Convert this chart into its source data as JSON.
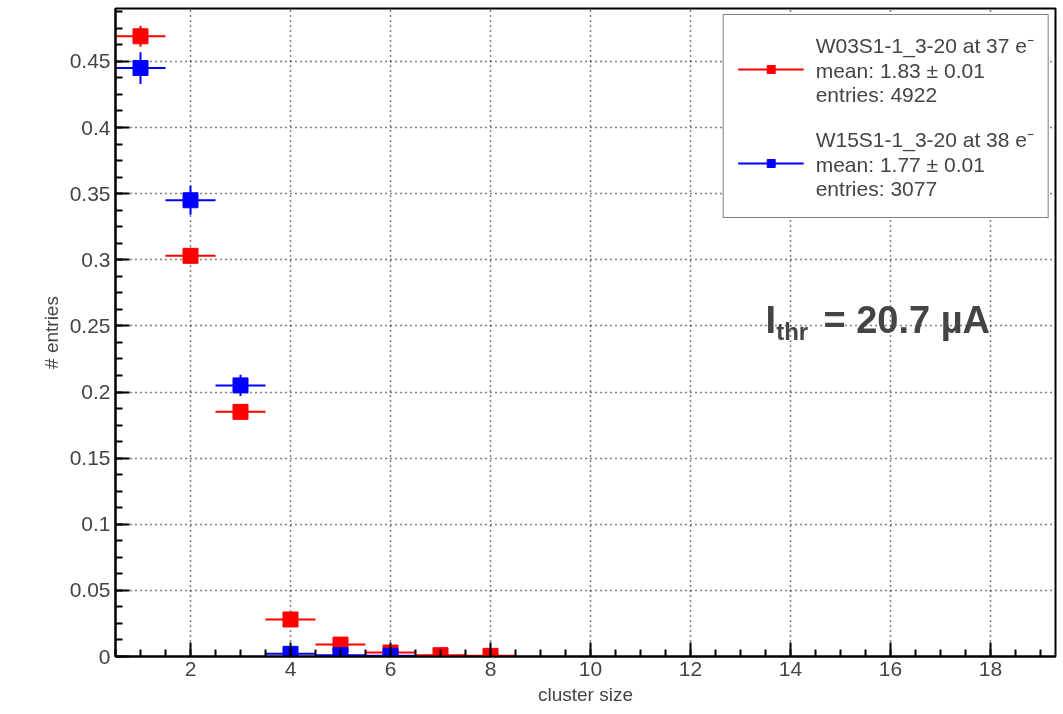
{
  "chart_data": {
    "type": "scatter",
    "xlabel": "cluster size",
    "ylabel": "# entries",
    "x": [
      1,
      2,
      3,
      4,
      5,
      6,
      7,
      8
    ],
    "xlim": [
      0.5,
      19.3
    ],
    "ylim": [
      0,
      0.49
    ],
    "xticks": [
      2,
      4,
      6,
      8,
      10,
      12,
      14,
      16,
      18
    ],
    "yticks": [
      0,
      0.05,
      0.1,
      0.15,
      0.2,
      0.25,
      0.3,
      0.35,
      0.4,
      0.45
    ],
    "marker": "square",
    "grid": true,
    "legend": "top right",
    "series": [
      {
        "name": "W03S1-1_3-20 at 37 e⁻\nmean: 1.83 ± 0.01\nentries: 4922",
        "color": "#ff0000",
        "values": [
          0.469,
          0.303,
          0.185,
          0.028,
          0.009,
          0.003,
          0.001,
          0.0005
        ],
        "errors": [
          0.008,
          0.006,
          0.004,
          0.002,
          null,
          null,
          null,
          null
        ],
        "xerrors": [
          0.5,
          0.5,
          0.5,
          0.5,
          0.5,
          0.5,
          0.5,
          0.5
        ]
      },
      {
        "name": "W15S1-1_3-20 at 38 e⁻\nmean: 1.77 ± 0.01\nentries: 3077",
        "color": "#0000ff",
        "x": [
          1,
          2,
          3,
          4,
          5,
          6
        ],
        "values": [
          0.445,
          0.345,
          0.205,
          0.002,
          0.001,
          0.0005
        ],
        "errors": [
          0.012,
          0.011,
          0.008,
          null,
          null,
          null
        ],
        "xerrors": [
          0.5,
          0.5,
          0.5,
          0.5,
          0.5,
          0.5
        ]
      }
    ],
    "annotations": [
      "I$_{thr}$ = 20.7 µA"
    ]
  }
}
